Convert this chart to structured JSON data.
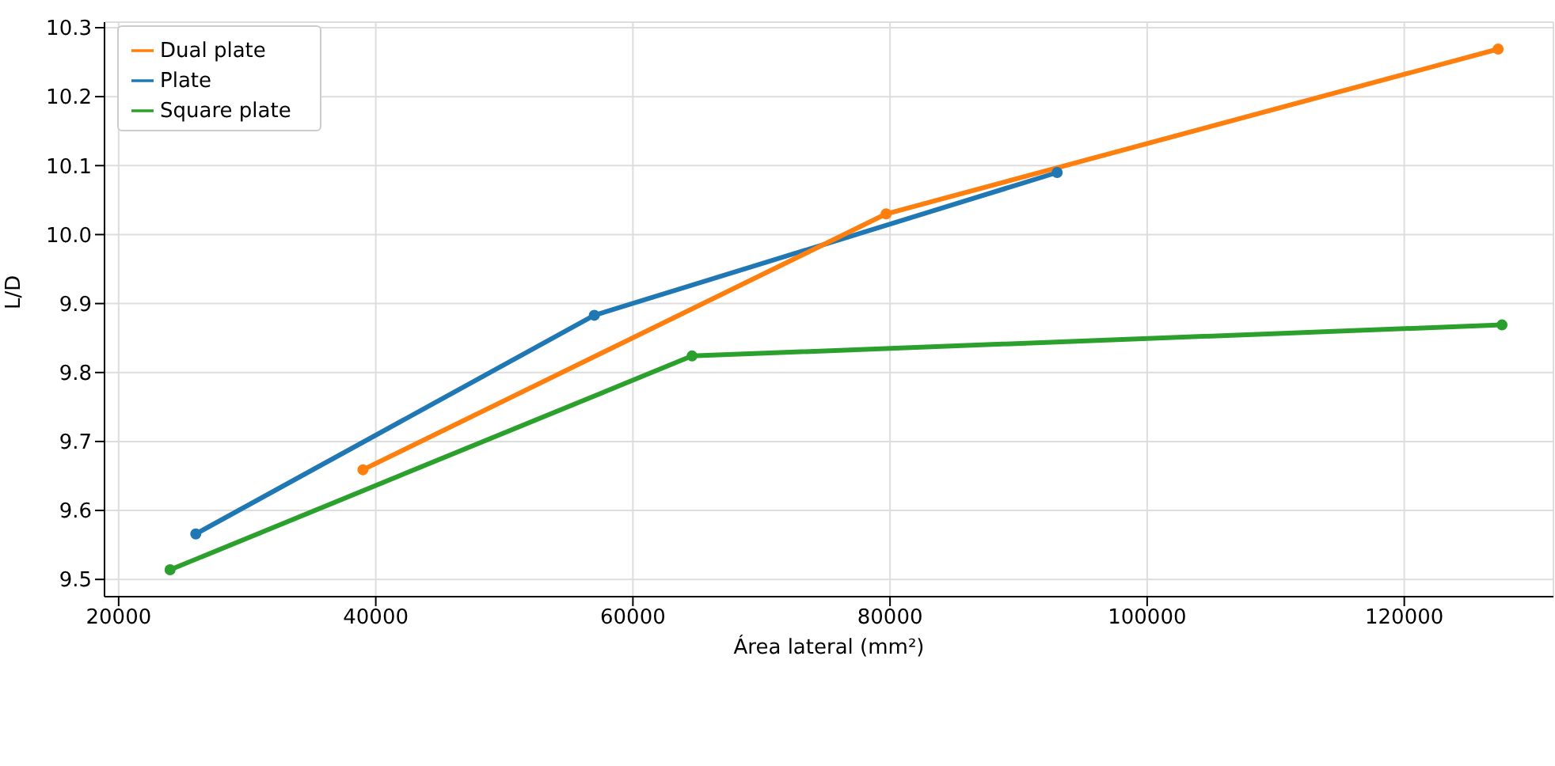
{
  "chart_data": {
    "type": "line",
    "xlabel": "Área lateral (mm²)",
    "ylabel": "L/D",
    "xlim": [
      18900,
      131600
    ],
    "xticks": [
      20000,
      40000,
      60000,
      80000,
      100000,
      120000
    ],
    "ylim": [
      9.475,
      10.308
    ],
    "yticks": [
      9.5,
      9.6,
      9.7,
      9.8,
      9.9,
      {
        "value": 10,
        "label": "10.0"
      },
      10.1,
      10.2,
      10.3
    ],
    "grid": true,
    "legend": "top left",
    "marker": "circle",
    "line_style": "solid",
    "series": [
      {
        "name": "Plate",
        "color": "#1f77b4",
        "x": [
          26000,
          57000,
          93000
        ],
        "values": [
          9.566,
          9.883,
          10.09
        ]
      },
      {
        "name": "Dual plate",
        "color": "#ff7f0e",
        "x": [
          39000,
          79700,
          127300
        ],
        "values": [
          9.659,
          10.03,
          10.269
        ]
      },
      {
        "name": "Square plate",
        "color": "#2ca02c",
        "x": [
          24000,
          64600,
          127600
        ],
        "values": [
          9.514,
          9.824,
          9.869
        ]
      }
    ]
  }
}
